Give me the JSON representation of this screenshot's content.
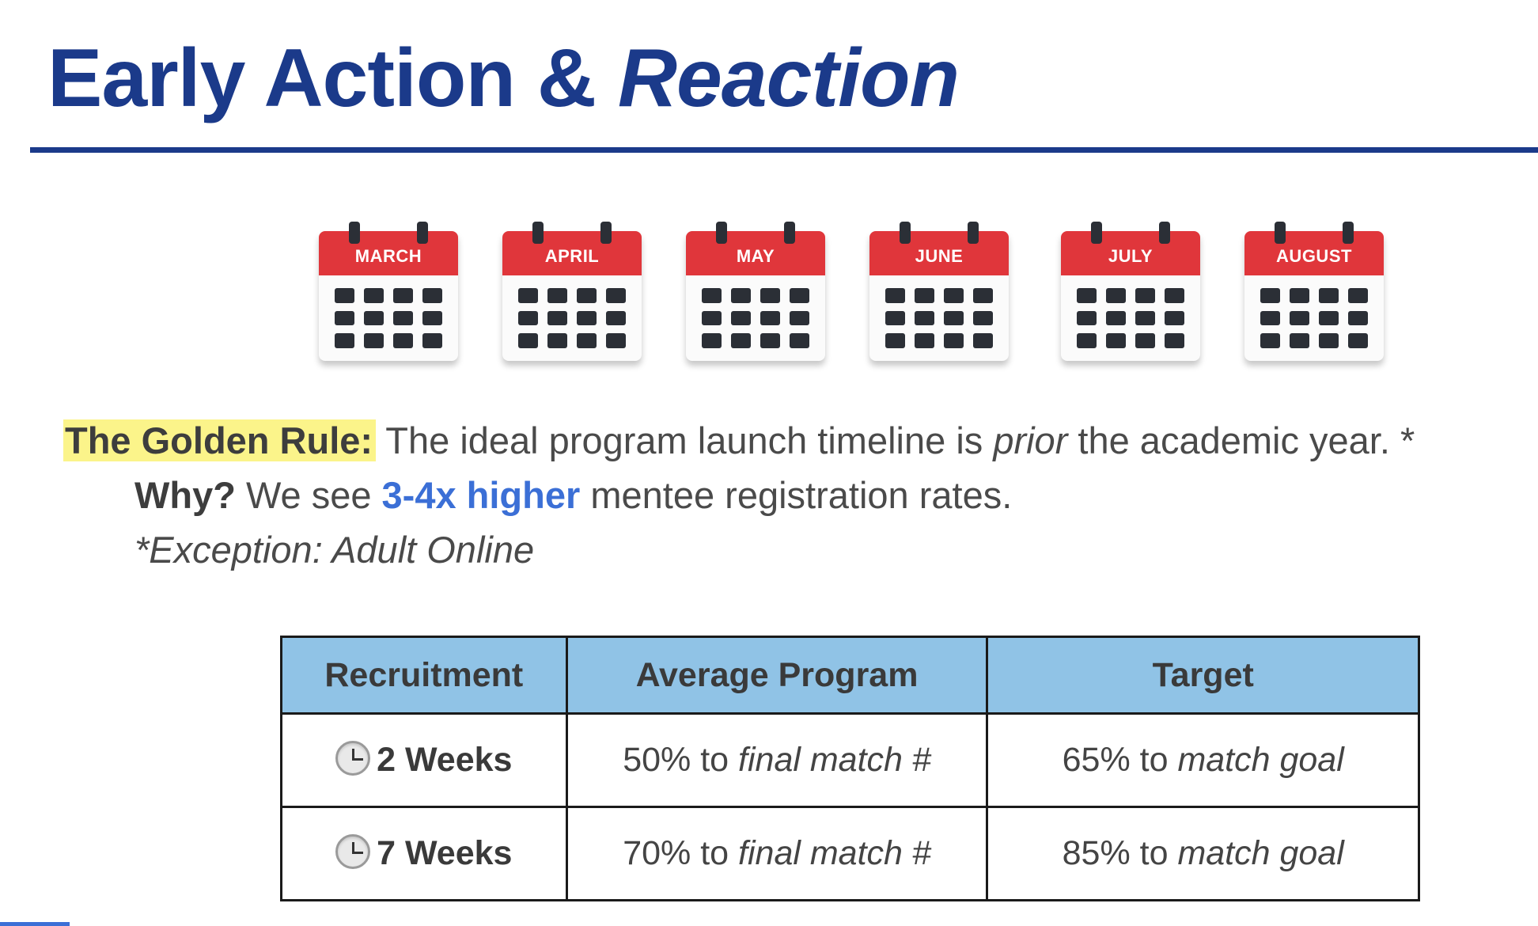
{
  "title": {
    "main": "Early Action & ",
    "emphasis": "Reaction"
  },
  "calendars": [
    "MARCH",
    "APRIL",
    "MAY",
    "JUNE",
    "JULY",
    "AUGUST"
  ],
  "golden_rule": {
    "label": "The Golden Rule:",
    "text_before": " The ideal program launch timeline is ",
    "italic_word": "prior",
    "text_after": " the academic year. *",
    "why_label": "Why?",
    "why_before": " We see ",
    "why_highlight": "3-4x higher",
    "why_after": " mentee registration rates.",
    "exception": "*Exception: Adult Online"
  },
  "table": {
    "headers": [
      "Recruitment",
      "Average Program",
      "Target"
    ],
    "rows": [
      {
        "recruitment": "2 Weeks",
        "avg_value": "50% to ",
        "avg_italic": "final match #",
        "target_value": "65% to ",
        "target_italic": "match goal"
      },
      {
        "recruitment": "7 Weeks",
        "avg_value": "70% to ",
        "avg_italic": "final match #",
        "target_value": "85% to ",
        "target_italic": "match goal"
      }
    ]
  },
  "colors": {
    "title": "#1b3a8a",
    "calendar_header": "#e0363b",
    "highlight": "#fbf48a",
    "accent": "#3b6fd6",
    "table_header": "#90c3e6"
  },
  "icons": {
    "clock": "clock-icon"
  }
}
